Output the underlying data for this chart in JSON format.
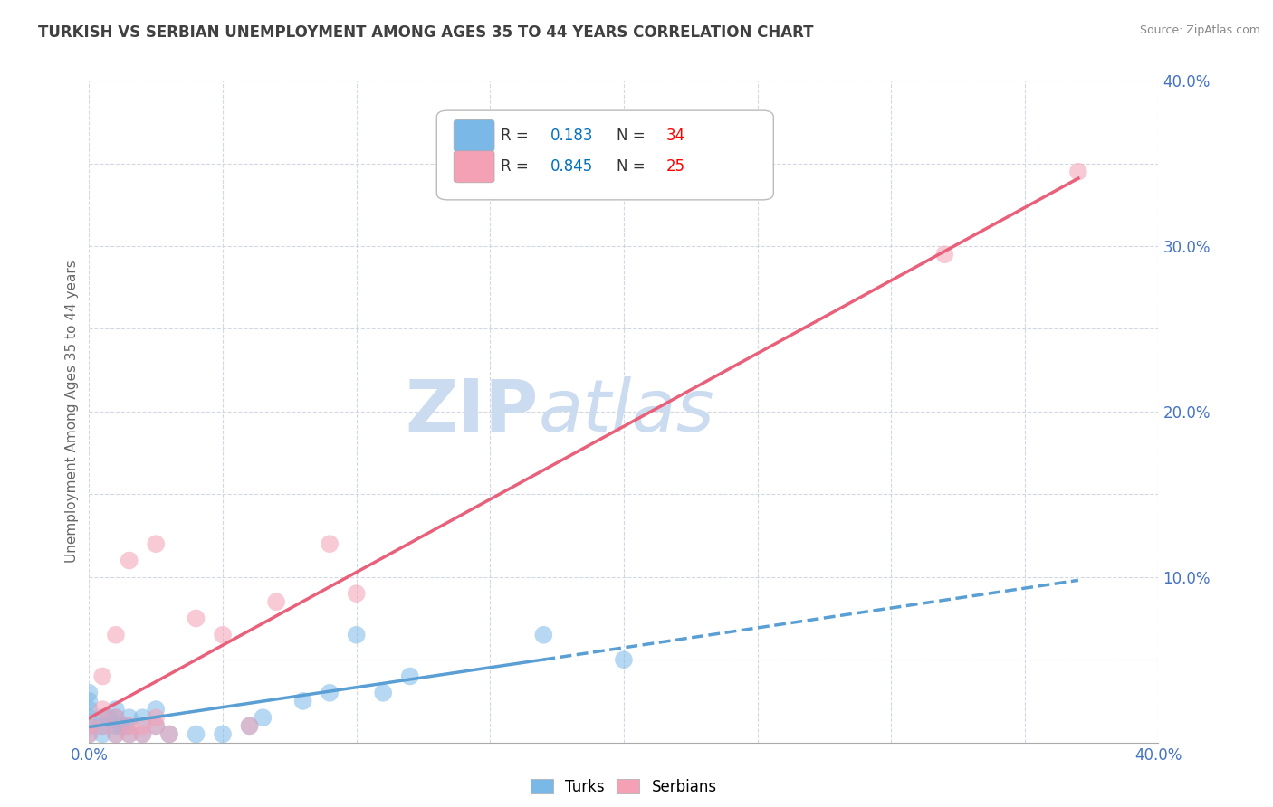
{
  "title": "TURKISH VS SERBIAN UNEMPLOYMENT AMONG AGES 35 TO 44 YEARS CORRELATION CHART",
  "source": "Source: ZipAtlas.com",
  "ylabel": "Unemployment Among Ages 35 to 44 years",
  "xlim": [
    0.0,
    0.4
  ],
  "ylim": [
    0.0,
    0.4
  ],
  "xticks": [
    0.0,
    0.05,
    0.1,
    0.15,
    0.2,
    0.25,
    0.3,
    0.35,
    0.4
  ],
  "yticks": [
    0.0,
    0.05,
    0.1,
    0.15,
    0.2,
    0.25,
    0.3,
    0.35,
    0.4
  ],
  "xtick_labels": [
    "0.0%",
    "",
    "",
    "",
    "",
    "",
    "",
    "",
    "40.0%"
  ],
  "ytick_labels": [
    "",
    "",
    "10.0%",
    "",
    "20.0%",
    "",
    "30.0%",
    "",
    "40.0%"
  ],
  "turks_color": "#7ab8e8",
  "serbians_color": "#f4a0b5",
  "turks_line_color": "#5a9fd4",
  "serbians_line_color": "#e8607a",
  "turks_R": 0.183,
  "turks_N": 34,
  "serbians_R": 0.845,
  "serbians_N": 25,
  "legend_R_color": "#0070c0",
  "legend_N_color": "#ff0000",
  "watermark_zip": "ZIP",
  "watermark_atlas": "atlas",
  "watermark_color": "#ccdcf0",
  "turks_x": [
    0.0,
    0.0,
    0.0,
    0.0,
    0.0,
    0.0,
    0.005,
    0.005,
    0.005,
    0.007,
    0.01,
    0.01,
    0.01,
    0.01,
    0.012,
    0.014,
    0.015,
    0.015,
    0.02,
    0.02,
    0.025,
    0.025,
    0.03,
    0.04,
    0.05,
    0.06,
    0.065,
    0.08,
    0.09,
    0.1,
    0.11,
    0.12,
    0.17,
    0.2
  ],
  "turks_y": [
    0.005,
    0.01,
    0.015,
    0.02,
    0.025,
    0.03,
    0.005,
    0.01,
    0.015,
    0.015,
    0.005,
    0.01,
    0.015,
    0.02,
    0.01,
    0.01,
    0.005,
    0.015,
    0.005,
    0.015,
    0.01,
    0.02,
    0.005,
    0.005,
    0.005,
    0.01,
    0.015,
    0.025,
    0.03,
    0.065,
    0.03,
    0.04,
    0.065,
    0.05
  ],
  "serbians_x": [
    0.0,
    0.0,
    0.005,
    0.005,
    0.005,
    0.01,
    0.01,
    0.01,
    0.015,
    0.015,
    0.015,
    0.02,
    0.02,
    0.025,
    0.025,
    0.025,
    0.03,
    0.04,
    0.05,
    0.06,
    0.07,
    0.09,
    0.1,
    0.32,
    0.37
  ],
  "serbians_y": [
    0.005,
    0.01,
    0.01,
    0.02,
    0.04,
    0.005,
    0.015,
    0.065,
    0.005,
    0.01,
    0.11,
    0.005,
    0.01,
    0.01,
    0.015,
    0.12,
    0.005,
    0.075,
    0.065,
    0.01,
    0.085,
    0.12,
    0.09,
    0.295,
    0.345
  ]
}
